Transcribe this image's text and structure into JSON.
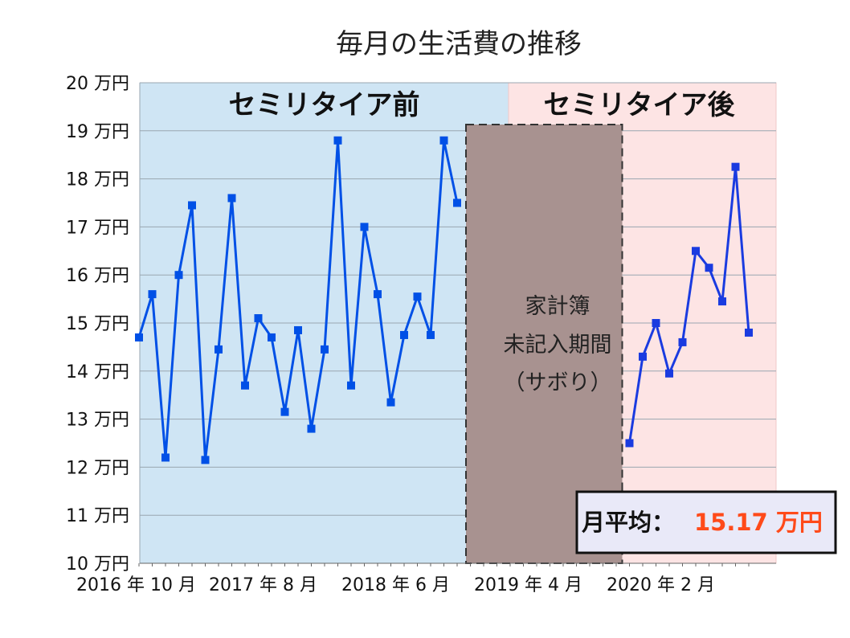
{
  "chart_data": {
    "type": "line",
    "title": "毎月の生活費の推移",
    "xlabel": "",
    "ylabel": "",
    "ylim": [
      10,
      20
    ],
    "y_ticks": [
      {
        "value": 10,
        "label": "10 万円"
      },
      {
        "value": 11,
        "label": "11 万円"
      },
      {
        "value": 12,
        "label": "12 万円"
      },
      {
        "value": 13,
        "label": "13 万円"
      },
      {
        "value": 14,
        "label": "14 万円"
      },
      {
        "value": 15,
        "label": "15 万円"
      },
      {
        "value": 16,
        "label": "16 万円"
      },
      {
        "value": 17,
        "label": "17 万円"
      },
      {
        "value": 18,
        "label": "18 万円"
      },
      {
        "value": 19,
        "label": "19 万円"
      },
      {
        "value": 20,
        "label": "20 万円"
      }
    ],
    "x_tick_labels": [
      {
        "month": "2016-10",
        "label": "2016 年 10 月"
      },
      {
        "month": "2017-08",
        "label": "2017 年 8 月"
      },
      {
        "month": "2018-06",
        "label": "2018 年 6 月"
      },
      {
        "month": "2019-04",
        "label": "2019 年 4 月"
      },
      {
        "month": "2020-02",
        "label": "2020 年 2 月"
      }
    ],
    "grid": true,
    "series": [
      {
        "color": "#0050e6",
        "points": [
          {
            "month": "2016-10",
            "value": 14.7
          },
          {
            "month": "2016-11",
            "value": 15.6
          },
          {
            "month": "2016-12",
            "value": 12.2
          },
          {
            "month": "2017-01",
            "value": 16.0
          },
          {
            "month": "2017-02",
            "value": 17.45
          },
          {
            "month": "2017-03",
            "value": 12.15
          },
          {
            "month": "2017-04",
            "value": 14.45
          },
          {
            "month": "2017-05",
            "value": 17.6
          },
          {
            "month": "2017-06",
            "value": 13.7
          },
          {
            "month": "2017-07",
            "value": 15.1
          },
          {
            "month": "2017-08",
            "value": 14.7
          },
          {
            "month": "2017-09",
            "value": 13.15
          },
          {
            "month": "2017-10",
            "value": 14.85
          },
          {
            "month": "2017-11",
            "value": 12.8
          },
          {
            "month": "2017-12",
            "value": 14.45
          },
          {
            "month": "2018-01",
            "value": 18.8
          },
          {
            "month": "2018-02",
            "value": 13.7
          },
          {
            "month": "2018-03",
            "value": 17.0
          },
          {
            "month": "2018-04",
            "value": 15.6
          },
          {
            "month": "2018-05",
            "value": 13.35
          },
          {
            "month": "2018-06",
            "value": 14.75
          },
          {
            "month": "2018-07",
            "value": 15.55
          },
          {
            "month": "2018-08",
            "value": 14.75
          },
          {
            "month": "2018-09",
            "value": 18.8
          },
          {
            "month": "2018-10",
            "value": 17.5
          }
        ]
      },
      {
        "color": "#1a3be0",
        "points": [
          {
            "month": "2019-11",
            "value": 12.5
          },
          {
            "month": "2019-12",
            "value": 14.3
          },
          {
            "month": "2020-01",
            "value": 15.0
          },
          {
            "month": "2020-02",
            "value": 13.95
          },
          {
            "month": "2020-03",
            "value": 14.6
          },
          {
            "month": "2020-04",
            "value": 16.5
          },
          {
            "month": "2020-05",
            "value": 16.15
          },
          {
            "month": "2020-06",
            "value": 15.45
          },
          {
            "month": "2020-07",
            "value": 18.25
          },
          {
            "month": "2020-08",
            "value": 14.8
          }
        ]
      }
    ],
    "regions": [
      {
        "label": "セミリタイア前",
        "from": "2016-10",
        "to": "2019-02",
        "color": "#cfe5f4"
      },
      {
        "label": "セミリタイア後",
        "from": "2019-02",
        "to": "2020-08",
        "color": "#fde4e4"
      }
    ],
    "gap_period": {
      "lines": [
        "家計簿",
        "未記入期間",
        "（サボり）"
      ],
      "color": "#a89290"
    },
    "average_box": {
      "label": "月平均：",
      "value": "15.17 万円"
    }
  }
}
